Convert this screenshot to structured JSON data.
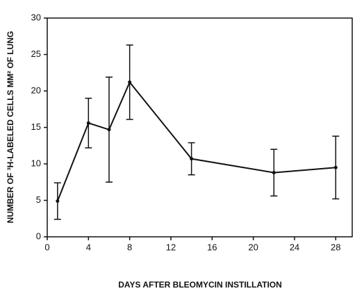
{
  "chart_data": {
    "type": "line",
    "xlabel": "DAYS AFTER BLEOMYCIN INSTILLATION",
    "ylabel": "NUMBER OF ³H-LABELED CELLS MM² OF LUNG",
    "x": [
      1,
      4,
      6,
      8,
      14,
      22,
      28
    ],
    "series": [
      {
        "color": "#111111",
        "values": [
          4.9,
          15.6,
          14.7,
          21.2,
          10.7,
          8.8,
          9.5
        ],
        "errors": [
          2.5,
          3.4,
          7.2,
          5.1,
          2.2,
          3.2,
          4.3
        ]
      }
    ],
    "xlim": [
      0,
      29.6
    ],
    "xticks": [
      0,
      4,
      8,
      12,
      16,
      20,
      24,
      28
    ],
    "ylim": [
      0,
      30
    ],
    "yticks": [
      0,
      5,
      10,
      15,
      20,
      25,
      30
    ]
  }
}
